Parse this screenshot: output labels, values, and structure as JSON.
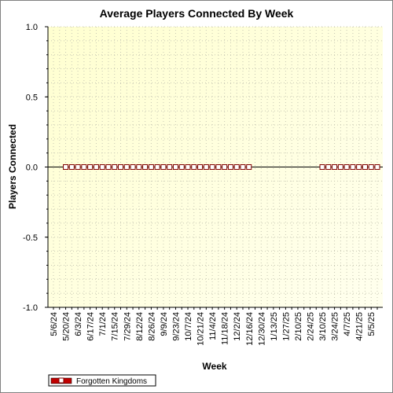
{
  "chart_data": {
    "type": "line",
    "title": "Average Players Connected By Week",
    "xlabel": "Week",
    "ylabel": "Players Connected",
    "ylim": [
      -1.0,
      1.0
    ],
    "yticks": [
      "1.0",
      "0.5",
      "0.0",
      "-0.5",
      "-1.0"
    ],
    "ytick_values": [
      1.0,
      0.5,
      0.0,
      -0.5,
      -1.0
    ],
    "x_tick_labels": [
      "5/6/24",
      "5/20/24",
      "6/3/24",
      "6/17/24",
      "7/1/24",
      "7/15/24",
      "7/29/24",
      "8/12/24",
      "8/26/24",
      "9/9/24",
      "9/23/24",
      "10/7/24",
      "10/21/24",
      "11/4/24",
      "11/18/24",
      "12/2/24",
      "12/16/24",
      "12/30/24",
      "1/13/25",
      "1/27/25",
      "2/10/25",
      "2/24/25",
      "3/10/25",
      "3/24/25",
      "4/7/25",
      "4/21/25",
      "5/5/25"
    ],
    "x_weeks": [
      "5/6/24",
      "5/13/24",
      "5/20/24",
      "5/27/24",
      "6/3/24",
      "6/10/24",
      "6/17/24",
      "6/24/24",
      "7/1/24",
      "7/8/24",
      "7/15/24",
      "7/22/24",
      "7/29/24",
      "8/5/24",
      "8/12/24",
      "8/19/24",
      "8/26/24",
      "9/2/24",
      "9/9/24",
      "9/16/24",
      "9/23/24",
      "9/30/24",
      "10/7/24",
      "10/14/24",
      "10/21/24",
      "10/28/24",
      "11/4/24",
      "11/11/24",
      "11/18/24",
      "11/25/24",
      "12/2/24",
      "12/9/24",
      "12/16/24",
      "12/23/24",
      "12/30/24",
      "1/6/25",
      "1/13/25",
      "1/20/25",
      "1/27/25",
      "2/3/25",
      "2/10/25",
      "2/17/25",
      "2/24/25",
      "3/3/25",
      "3/10/25",
      "3/17/25",
      "3/24/25",
      "3/31/25",
      "4/7/25",
      "4/14/25",
      "4/21/25",
      "4/28/25",
      "5/5/25",
      "5/12/25"
    ],
    "series": [
      {
        "name": "Forgotten Kingdoms",
        "color": "#c00000",
        "points": [
          {
            "x": "5/20/24",
            "y": 0
          },
          {
            "x": "5/27/24",
            "y": 0
          },
          {
            "x": "6/3/24",
            "y": 0
          },
          {
            "x": "6/10/24",
            "y": 0
          },
          {
            "x": "6/17/24",
            "y": 0
          },
          {
            "x": "6/24/24",
            "y": 0
          },
          {
            "x": "7/1/24",
            "y": 0
          },
          {
            "x": "7/8/24",
            "y": 0
          },
          {
            "x": "7/15/24",
            "y": 0
          },
          {
            "x": "7/22/24",
            "y": 0
          },
          {
            "x": "7/29/24",
            "y": 0
          },
          {
            "x": "8/5/24",
            "y": 0
          },
          {
            "x": "8/12/24",
            "y": 0
          },
          {
            "x": "8/19/24",
            "y": 0
          },
          {
            "x": "8/26/24",
            "y": 0
          },
          {
            "x": "9/2/24",
            "y": 0
          },
          {
            "x": "9/9/24",
            "y": 0
          },
          {
            "x": "9/16/24",
            "y": 0
          },
          {
            "x": "9/23/24",
            "y": 0
          },
          {
            "x": "9/30/24",
            "y": 0
          },
          {
            "x": "10/7/24",
            "y": 0
          },
          {
            "x": "10/14/24",
            "y": 0
          },
          {
            "x": "10/21/24",
            "y": 0
          },
          {
            "x": "10/28/24",
            "y": 0
          },
          {
            "x": "11/4/24",
            "y": 0
          },
          {
            "x": "11/11/24",
            "y": 0
          },
          {
            "x": "11/18/24",
            "y": 0
          },
          {
            "x": "11/25/24",
            "y": 0
          },
          {
            "x": "12/2/24",
            "y": 0
          },
          {
            "x": "12/9/24",
            "y": 0
          },
          {
            "x": "12/16/24",
            "y": 0
          },
          {
            "x": "3/10/25",
            "y": 0
          },
          {
            "x": "3/17/25",
            "y": 0
          },
          {
            "x": "3/24/25",
            "y": 0
          },
          {
            "x": "3/31/25",
            "y": 0
          },
          {
            "x": "4/7/25",
            "y": 0
          },
          {
            "x": "4/14/25",
            "y": 0
          },
          {
            "x": "4/21/25",
            "y": 0
          },
          {
            "x": "4/28/25",
            "y": 0
          },
          {
            "x": "5/5/25",
            "y": 0
          },
          {
            "x": "5/12/25",
            "y": 0
          }
        ]
      }
    ],
    "grid": true,
    "legend": "bottom-left",
    "background": "light-yellow gradient"
  }
}
